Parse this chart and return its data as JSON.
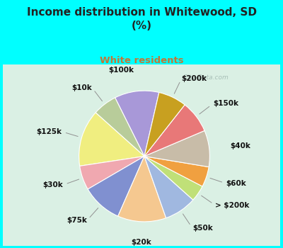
{
  "title": "Income distribution in Whitewood, SD\n(%)",
  "subtitle": "White residents",
  "labels": [
    "$100k",
    "$10k",
    "$125k",
    "$30k",
    "$75k",
    "$20k",
    "$50k",
    "> $200k",
    "$60k",
    "$40k",
    "$150k",
    "$200k"
  ],
  "values": [
    11,
    6,
    14,
    6,
    10,
    12,
    8,
    4,
    5,
    9,
    8,
    7
  ],
  "colors": [
    "#a898d8",
    "#b8cc9a",
    "#f0ee80",
    "#f0a8b0",
    "#8090d0",
    "#f5c890",
    "#a0b8e0",
    "#c0e078",
    "#f0a040",
    "#c8bca8",
    "#e87878",
    "#c8a020"
  ],
  "bg_color_top": "#00ffff",
  "bg_color_chart_top": "#e8f8f4",
  "bg_color_chart_bottom": "#d0ecd8",
  "title_color": "#222222",
  "subtitle_color": "#c07838",
  "label_color": "#111111",
  "label_fontsize": 7.5,
  "watermark": "City-Data.com",
  "startangle": 77
}
